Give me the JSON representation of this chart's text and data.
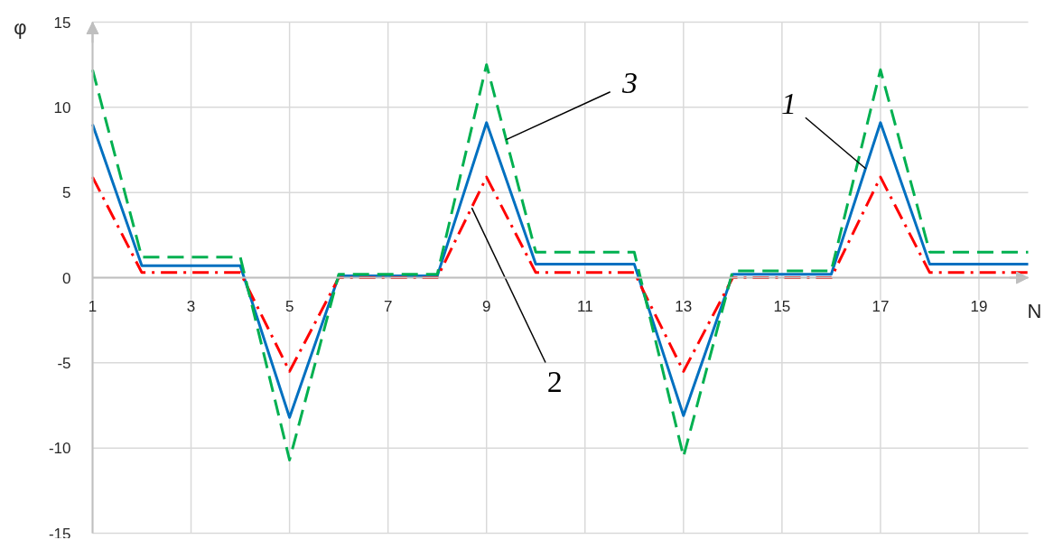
{
  "chart_data": {
    "type": "line",
    "xlabel": "N",
    "ylabel": "φ",
    "x": [
      1,
      2,
      3,
      4,
      5,
      6,
      7,
      8,
      9,
      10,
      11,
      12,
      13,
      14,
      15,
      16,
      17,
      18,
      19,
      20
    ],
    "series": [
      {
        "color": "#0070c0",
        "line_style": "solid",
        "values": [
          9.0,
          0.7,
          0.7,
          0.7,
          -8.2,
          0.1,
          0.1,
          0.1,
          9.1,
          0.8,
          0.8,
          0.8,
          -8.1,
          0.2,
          0.2,
          0.2,
          9.1,
          0.8,
          0.8,
          0.8
        ]
      },
      {
        "color": "#ff0000",
        "line_style": "dashdot",
        "values": [
          5.9,
          0.3,
          0.3,
          0.3,
          -5.5,
          0.0,
          0.0,
          0.0,
          5.9,
          0.3,
          0.3,
          0.3,
          -5.5,
          0.0,
          0.0,
          0.0,
          5.9,
          0.3,
          0.3,
          0.3
        ]
      },
      {
        "color": "#00b050",
        "line_style": "dashed",
        "values": [
          12.2,
          1.2,
          1.2,
          1.2,
          -10.7,
          0.2,
          0.2,
          0.2,
          12.5,
          1.5,
          1.5,
          1.5,
          -10.5,
          0.4,
          0.4,
          0.4,
          12.2,
          1.5,
          1.5,
          1.5
        ]
      }
    ],
    "xlim": [
      1,
      20
    ],
    "ylim": [
      -15,
      15
    ],
    "xticks": [
      1,
      3,
      5,
      7,
      9,
      11,
      13,
      15,
      17,
      19
    ],
    "yticks": [
      -15,
      -10,
      -5,
      0,
      5,
      10,
      15
    ],
    "grid": true,
    "annotations": [
      {
        "text": "1",
        "x": 16.7,
        "y": 6.4
      },
      {
        "text": "2",
        "x": 8.7,
        "y": 4.1
      },
      {
        "text": "3",
        "x": 9.4,
        "y": 8.1
      }
    ]
  }
}
